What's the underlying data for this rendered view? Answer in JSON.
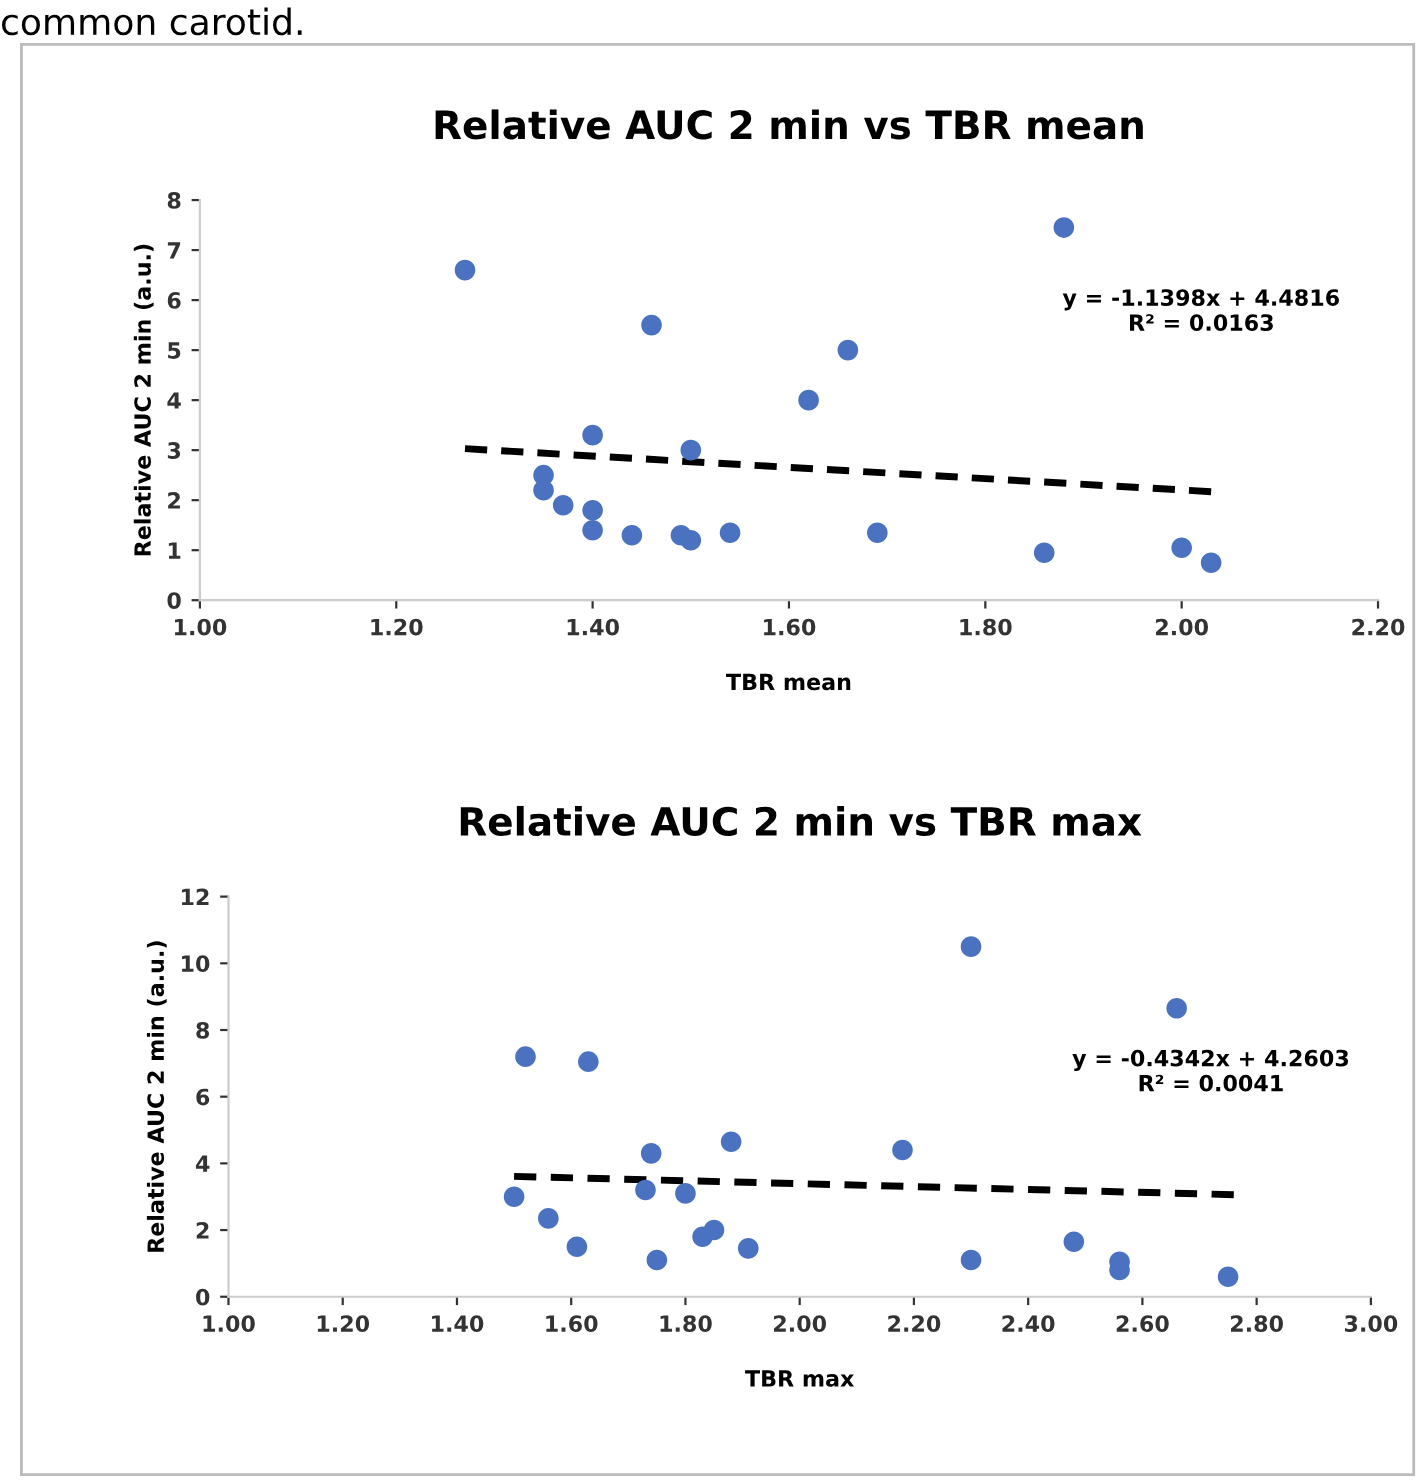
{
  "chart_data": [
    {
      "type": "scatter",
      "title": "Relative AUC 2 min vs TBR mean",
      "xlabel": "TBR mean",
      "ylabel": "Relative AUC 2 min (a.u.)",
      "annotations": [
        "common carotid.",
        "y = -1.1398x + 4.4816\nR² = 0.0163"
      ],
      "xlim": [
        1.0,
        2.2
      ],
      "xticks": [
        {
          "value": 1.0,
          "label": "1.00"
        },
        {
          "value": 1.2,
          "label": "1.20"
        },
        {
          "value": 1.4,
          "label": "1.40"
        },
        {
          "value": 1.6,
          "label": "1.60"
        },
        {
          "value": 1.8,
          "label": "1.80"
        },
        {
          "value": 2.0,
          "label": "2.00"
        },
        {
          "value": 2.2,
          "label": "2.20"
        }
      ],
      "ylim": [
        0,
        8
      ],
      "yticks": [
        0,
        1,
        2,
        3,
        4,
        5,
        6,
        7,
        8
      ],
      "grid": false,
      "legend": false,
      "series": [
        {
          "type": "scatter",
          "color": "#4a72c0",
          "marker": "circle",
          "x": [
            1.27,
            1.35,
            1.35,
            1.37,
            1.4,
            1.4,
            1.4,
            1.44,
            1.46,
            1.49,
            1.5,
            1.5,
            1.54,
            1.62,
            1.66,
            1.69,
            1.86,
            1.88,
            2.0,
            2.03
          ],
          "values": [
            6.6,
            2.5,
            2.2,
            1.9,
            1.4,
            1.8,
            3.3,
            1.3,
            5.5,
            1.3,
            1.2,
            3.0,
            1.35,
            4.0,
            5.0,
            1.35,
            0.95,
            7.45,
            1.05,
            0.75
          ]
        },
        {
          "type": "line",
          "color": "#000000",
          "line_style": "dashed",
          "marker": "none",
          "x": [
            1.27,
            2.03
          ],
          "values": [
            3.03,
            2.17
          ]
        }
      ]
    },
    {
      "type": "scatter",
      "title": "Relative AUC 2 min vs TBR max",
      "xlabel": "TBR max",
      "ylabel": "Relative AUC 2 min (a.u.)",
      "annotations": [
        "y = -0.4342x + 4.2603\nR² = 0.0041"
      ],
      "xlim": [
        1.0,
        3.0
      ],
      "xticks": [
        {
          "value": 1.0,
          "label": "1.00"
        },
        {
          "value": 1.2,
          "label": "1.20"
        },
        {
          "value": 1.4,
          "label": "1.40"
        },
        {
          "value": 1.6,
          "label": "1.60"
        },
        {
          "value": 1.8,
          "label": "1.80"
        },
        {
          "value": 2.0,
          "label": "2.00"
        },
        {
          "value": 2.2,
          "label": "2.20"
        },
        {
          "value": 2.4,
          "label": "2.40"
        },
        {
          "value": 2.6,
          "label": "2.60"
        },
        {
          "value": 2.8,
          "label": "2.80"
        },
        {
          "value": 3.0,
          "label": "3.00"
        }
      ],
      "ylim": [
        0,
        12
      ],
      "yticks": [
        0,
        2,
        4,
        6,
        8,
        10,
        12
      ],
      "grid": false,
      "legend": false,
      "series": [
        {
          "type": "scatter",
          "color": "#4a72c0",
          "marker": "circle",
          "x": [
            1.5,
            1.52,
            1.56,
            1.61,
            1.63,
            1.73,
            1.74,
            1.75,
            1.8,
            1.83,
            1.85,
            1.88,
            1.91,
            2.18,
            2.3,
            2.3,
            2.48,
            2.56,
            2.56,
            2.66,
            2.75
          ],
          "values": [
            3.0,
            7.2,
            2.35,
            1.5,
            7.05,
            3.2,
            4.3,
            1.1,
            3.1,
            1.8,
            2.0,
            4.65,
            1.45,
            4.4,
            10.5,
            1.1,
            1.65,
            1.05,
            0.8,
            8.65,
            0.6
          ]
        },
        {
          "type": "line",
          "color": "#000000",
          "line_style": "dashed",
          "marker": "none",
          "x": [
            1.5,
            2.76
          ],
          "values": [
            3.61,
            3.06
          ]
        }
      ]
    }
  ]
}
